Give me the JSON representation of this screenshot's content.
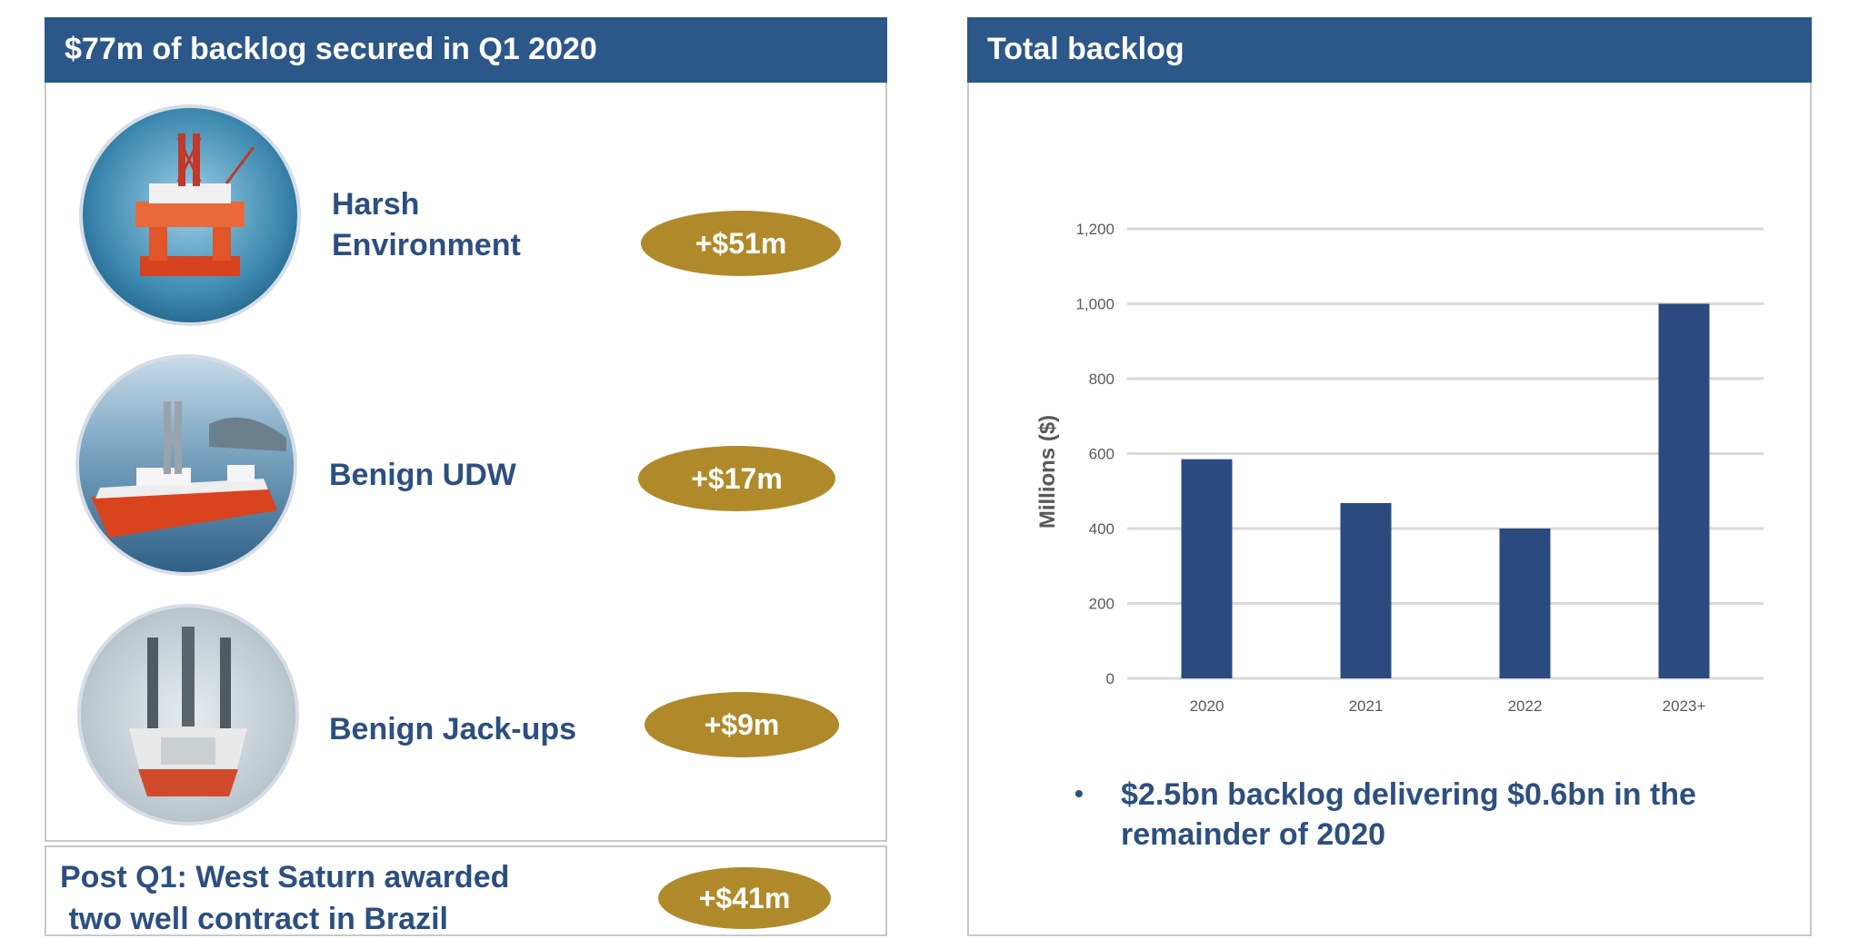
{
  "left_panel": {
    "title": "$77m of backlog secured in Q1 2020",
    "rows": [
      {
        "label_line1": "Harsh",
        "label_line2": "Environment",
        "value": "+$51m",
        "photo": "semi-submersible-rig-photo"
      },
      {
        "label": "Benign UDW",
        "value": "+$17m",
        "photo": "drillship-photo"
      },
      {
        "label": "Benign Jack-ups",
        "value": "+$9m",
        "photo": "jack-up-rig-photo"
      }
    ]
  },
  "post_q1": {
    "line1": "Post Q1: West Saturn awarded",
    "line2": " two well contract in Brazil",
    "value": "+$41m"
  },
  "right_panel": {
    "title": "Total backlog",
    "bullet_line1": "$2.5bn backlog delivering $0.6bn in the",
    "bullet_line2": "remainder of 2020"
  },
  "colors": {
    "header_blue": "#2c5789",
    "text_blue": "#2c4f80",
    "pill_gold": "#b08a2a",
    "bar_blue": "#2b4a80"
  },
  "chart_data": {
    "type": "bar",
    "categories": [
      "2020",
      "2021",
      "2022",
      "2023+"
    ],
    "values": [
      585,
      468,
      400,
      1000
    ],
    "title": "",
    "xlabel": "",
    "ylabel": "Millions ($)",
    "ylim": [
      0,
      1200
    ],
    "yticks": [
      0,
      200,
      400,
      600,
      800,
      1000,
      1200
    ],
    "ytick_labels": [
      "0",
      "200",
      "400",
      "600",
      "800",
      "1,000",
      "1,200"
    ],
    "grid": true
  }
}
